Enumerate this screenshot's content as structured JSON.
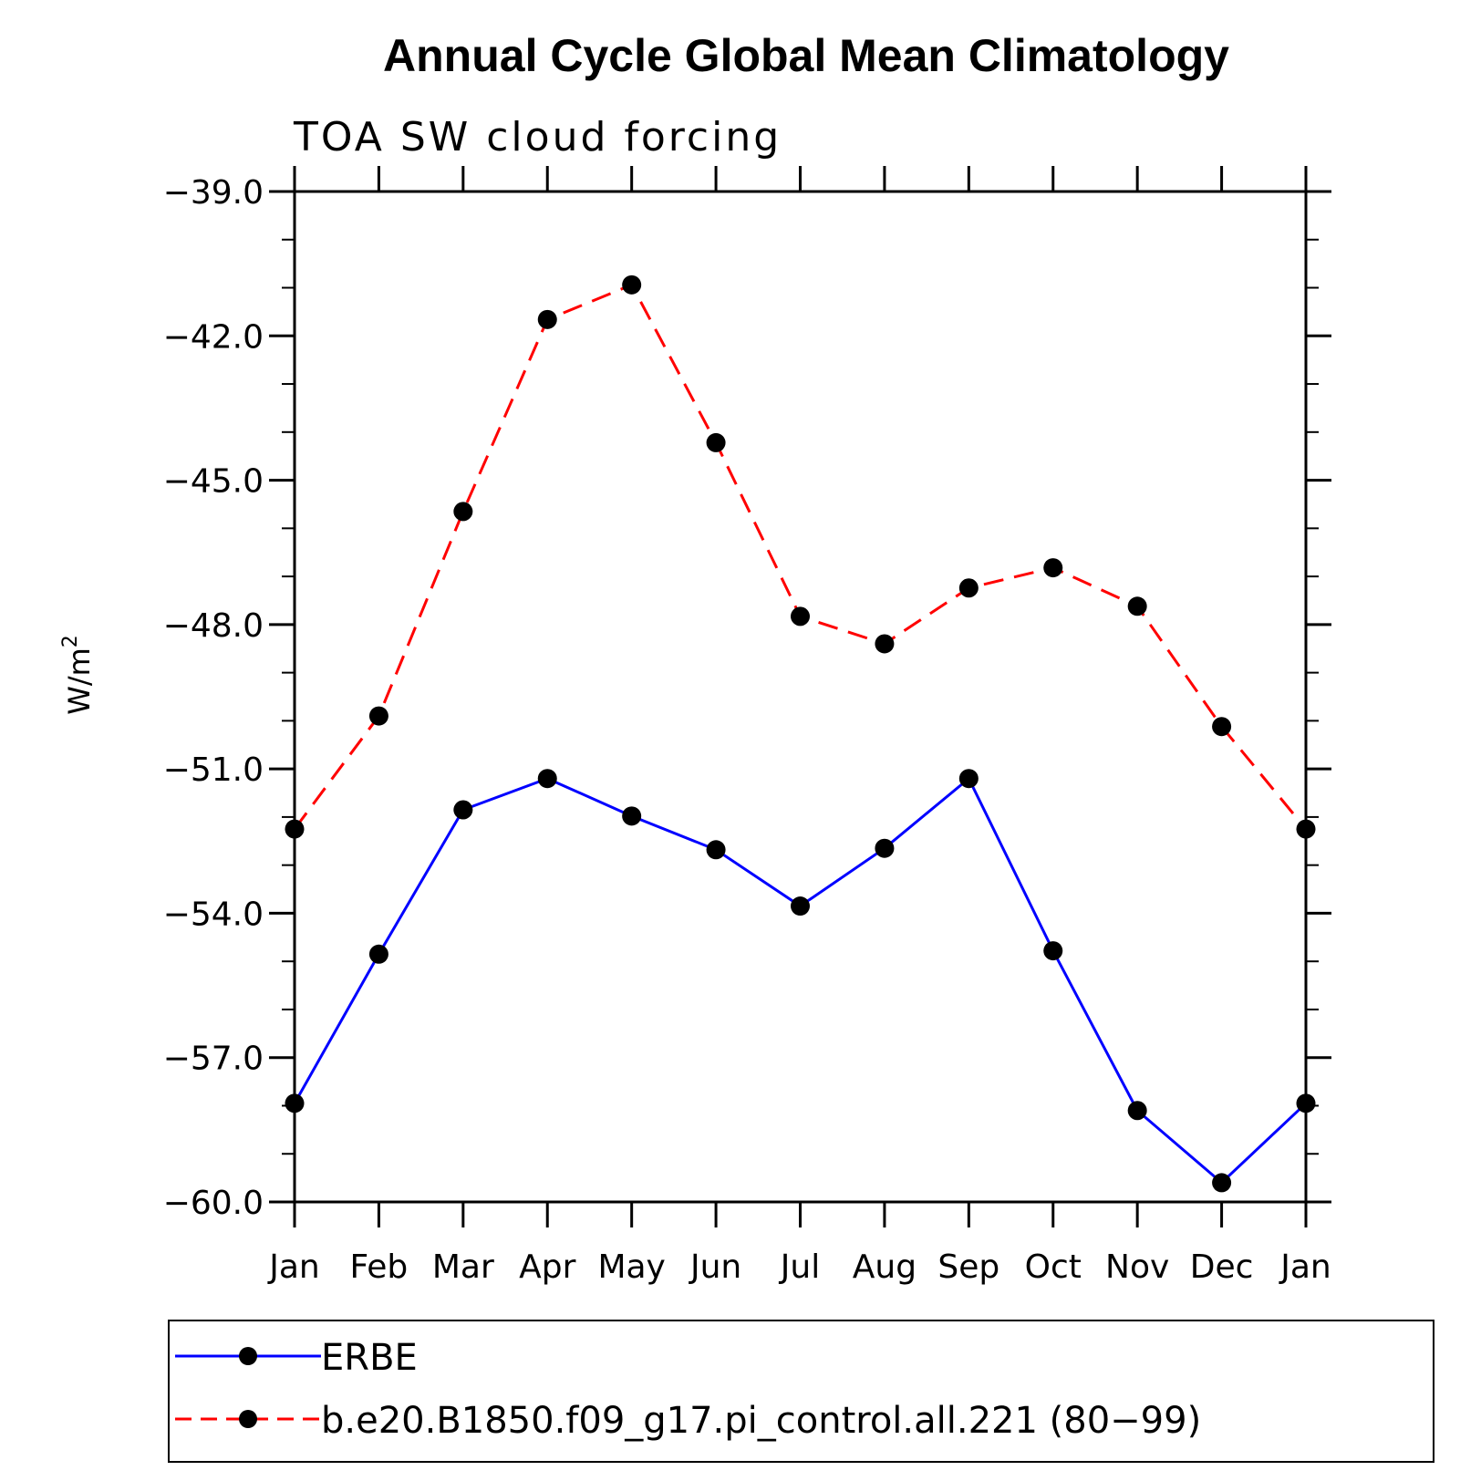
{
  "chart_data": {
    "type": "line",
    "title": "Annual Cycle Global Mean Climatology",
    "subtitle": "TOA SW cloud forcing",
    "xlabel": "",
    "ylabel": "W/m",
    "ylabel_superscript": "2",
    "categories": [
      "Jan",
      "Feb",
      "Mar",
      "Apr",
      "May",
      "Jun",
      "Jul",
      "Aug",
      "Sep",
      "Oct",
      "Nov",
      "Dec",
      "Jan"
    ],
    "ylim": [
      -60.0,
      -39.0
    ],
    "yticks": [
      "-39.0",
      "-42.0",
      "-45.0",
      "-48.0",
      "-51.0",
      "-54.0",
      "-57.0",
      "-60.0"
    ],
    "ytick_values": [
      -39.0,
      -42.0,
      -45.0,
      -48.0,
      -51.0,
      -54.0,
      -57.0,
      -60.0
    ],
    "series": [
      {
        "name": "ERBE",
        "color": "#0000ff",
        "dash": "solid",
        "values": [
          -57.95,
          -54.85,
          -51.85,
          -51.2,
          -51.98,
          -52.68,
          -53.85,
          -52.65,
          -51.2,
          -54.78,
          -58.1,
          -59.6,
          -57.95
        ]
      },
      {
        "name": "b.e20.B1850.f09_g17.pi_control.all.221 (80−99)",
        "color": "#ff0000",
        "dash": "dashed",
        "values": [
          -52.25,
          -49.9,
          -45.65,
          -41.66,
          -40.94,
          -44.22,
          -47.83,
          -48.4,
          -47.24,
          -46.82,
          -47.62,
          -50.12,
          -52.25
        ]
      }
    ],
    "legend_position": "bottom"
  }
}
